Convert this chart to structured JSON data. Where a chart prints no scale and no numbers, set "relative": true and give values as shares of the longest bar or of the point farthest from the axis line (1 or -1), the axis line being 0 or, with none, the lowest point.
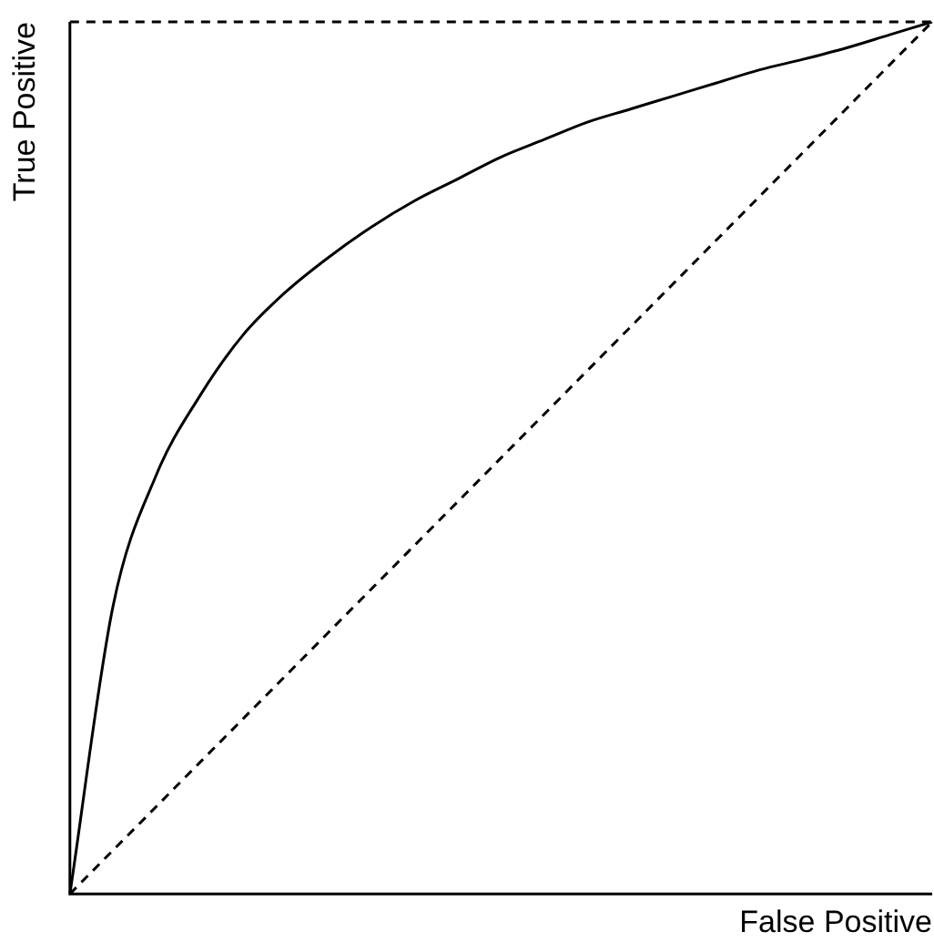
{
  "chart_data": {
    "type": "line",
    "xlabel": "False Positive",
    "ylabel": "True Positive",
    "relative": true,
    "grid": false,
    "legend": false,
    "marker": "none",
    "categories": [
      null,
      null,
      null,
      null,
      null,
      null,
      null,
      null,
      null,
      null,
      null,
      null,
      null,
      null,
      null,
      null,
      null,
      null,
      null,
      null,
      null
    ],
    "series": [
      {
        "color": "#000000",
        "line_style": "solid",
        "values": [
          0,
          0.33,
          0.48,
          0.57,
          0.64,
          0.69,
          0.73,
          0.765,
          0.795,
          0.82,
          0.845,
          0.865,
          0.885,
          0.9,
          0.915,
          0.93,
          0.945,
          0.957,
          0.97,
          0.985,
          1
        ]
      },
      {
        "color": "#000000",
        "line_style": "dashed",
        "values": [
          0,
          0.05,
          0.1,
          0.15,
          0.2,
          0.25,
          0.3,
          0.35,
          0.4,
          0.45,
          0.5,
          0.55,
          0.6,
          0.65,
          0.7,
          0.75,
          0.8,
          0.85,
          0.9,
          0.95,
          1
        ]
      }
    ],
    "ref_lines": [
      {
        "axis": "y",
        "value": 1,
        "color": "#000000",
        "line_style": "dashed"
      }
    ]
  }
}
